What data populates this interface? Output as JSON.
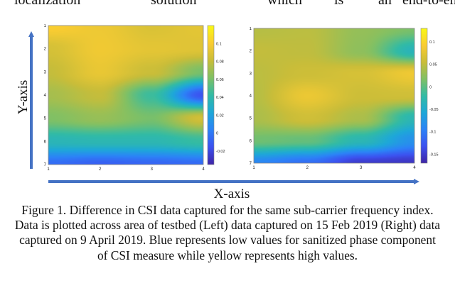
{
  "top_text": [
    "localization",
    "solution",
    "which",
    "is",
    "an",
    "end-to-end"
  ],
  "axes": {
    "x_label": "X-axis",
    "y_label": "Y-axis"
  },
  "colormap": [
    "#3e26a8",
    "#3c52f0",
    "#2c83f7",
    "#1ea8d8",
    "#32bba5",
    "#80c065",
    "#c9bd39",
    "#f9cc32",
    "#f9f815"
  ],
  "caption": "Figure 1. Difference in CSI data captured for the same sub-carrier frequency index. Data is plotted across area of testbed (Left) data captured on 15 Feb 2019 (Right) data captured on 9 April 2019. Blue represents low values for sanitized phase component of CSI measure while yellow represents high values.",
  "chart_data": [
    {
      "type": "heatmap",
      "xlim": [
        1,
        4
      ],
      "ylim": [
        1,
        7
      ],
      "x_ticks": [
        1,
        2,
        3,
        4
      ],
      "y_ticks": [
        1,
        2,
        3,
        4,
        5,
        6,
        7
      ],
      "colorbar_ticks": [
        "0.1",
        "0.08",
        "0.06",
        "0.04",
        "0.02",
        "0",
        "-0.02"
      ],
      "colorbar_values": [
        0.1,
        0.08,
        0.06,
        0.04,
        0.02,
        0,
        -0.02
      ],
      "clim": [
        -0.035,
        0.12
      ],
      "grid_x": [
        1,
        2,
        3,
        4
      ],
      "grid_y": [
        1,
        2,
        3,
        4,
        5,
        6,
        7
      ],
      "values": [
        [
          0.102,
          0.096,
          0.088,
          0.092
        ],
        [
          0.086,
          0.097,
          0.092,
          0.09
        ],
        [
          0.08,
          0.094,
          0.082,
          0.06
        ],
        [
          0.072,
          0.08,
          0.045,
          -0.015
        ],
        [
          0.062,
          0.068,
          0.06,
          0.085
        ],
        [
          0.036,
          0.038,
          0.038,
          0.044
        ],
        [
          -0.005,
          -0.01,
          -0.008,
          -0.006
        ]
      ]
    },
    {
      "type": "heatmap",
      "xlim": [
        1,
        4
      ],
      "ylim": [
        1,
        7
      ],
      "x_ticks": [
        1,
        2,
        3,
        4
      ],
      "y_ticks": [
        1,
        2,
        3,
        4,
        5,
        6,
        7
      ],
      "colorbar_ticks": [
        "0.1",
        "0.05",
        "0",
        "-0.05",
        "-0.1",
        "-0.15"
      ],
      "colorbar_values": [
        0.1,
        0.05,
        0,
        -0.05,
        -0.1,
        -0.15
      ],
      "clim": [
        -0.17,
        0.13
      ],
      "grid_x": [
        1,
        2,
        3,
        4
      ],
      "grid_y": [
        1,
        2,
        3,
        4,
        5,
        6,
        7
      ],
      "values": [
        [
          0.045,
          0.048,
          0.028,
          0.015
        ],
        [
          0.052,
          0.05,
          0.025,
          -0.035
        ],
        [
          0.048,
          0.058,
          0.065,
          0.085
        ],
        [
          0.045,
          0.082,
          0.058,
          0.06
        ],
        [
          0.04,
          0.06,
          0.04,
          -0.03
        ],
        [
          0.01,
          0.005,
          -0.03,
          -0.08
        ],
        [
          -0.09,
          -0.11,
          -0.15,
          -0.155
        ]
      ]
    }
  ]
}
